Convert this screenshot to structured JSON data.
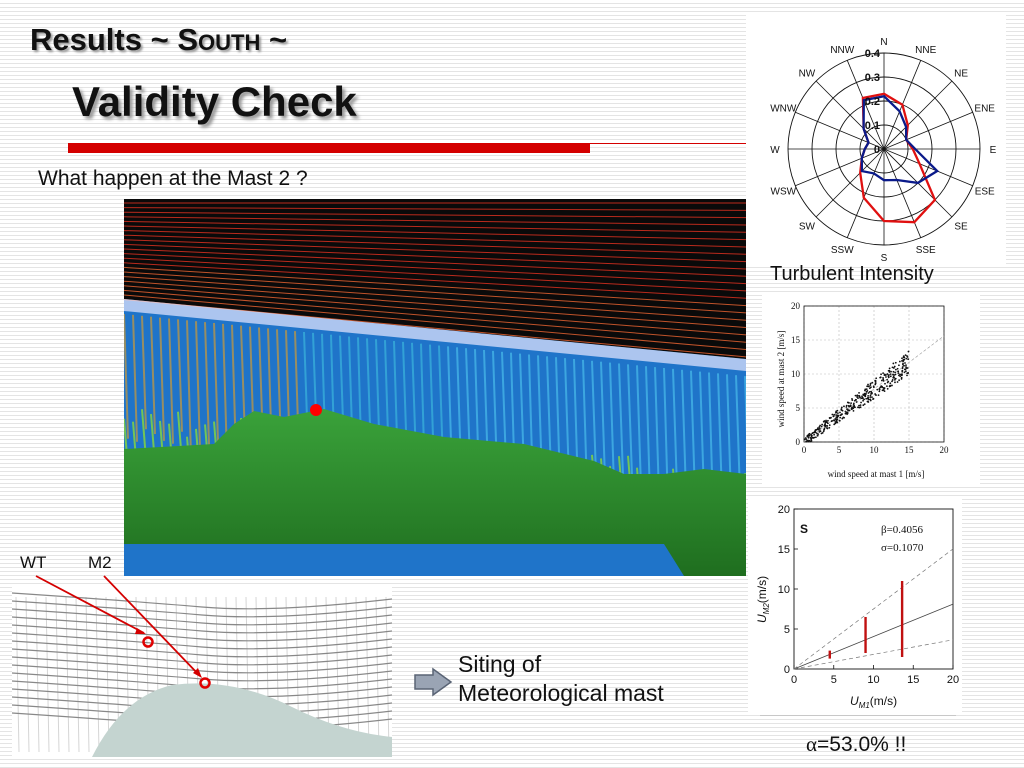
{
  "slide": {
    "title_results": "Results",
    "title_tilde1": "~",
    "title_s": "S",
    "title_outh": "OUTH",
    "title_tilde2": "~",
    "subtitle": "Validity Check",
    "question": "What happen at the Mast 2 ?",
    "label_wt": "WT",
    "label_m2": "M2",
    "siting_line1": "Siting of",
    "siting_line2": "Meteorological mast",
    "turbulent_label": "Turbulent Intensity",
    "alpha_symbol": "α",
    "alpha_text": "=53.0% !!"
  },
  "colors": {
    "accent_red": "#d40000",
    "sky": "#0a0a0a",
    "sea": "#1f74c9",
    "terrain": "#2a8a2a",
    "rose_red": "#e01010",
    "rose_blue": "#0a1a8a"
  },
  "chart_data": [
    {
      "type": "radar",
      "directions": [
        "N",
        "NNE",
        "NE",
        "ENE",
        "E",
        "ESE",
        "SE",
        "SSE",
        "S",
        "SSW",
        "SW",
        "WSW",
        "W",
        "WNW",
        "NW",
        "NNW"
      ],
      "radial_ticks": [
        "0",
        "0.1",
        "0.2",
        "0.3",
        "0.4"
      ],
      "rlim": [
        0,
        0.4
      ],
      "series": [
        {
          "color": "#e01010",
          "values": [
            0.23,
            0.2,
            0.14,
            0.1,
            0.12,
            0.16,
            0.3,
            0.33,
            0.3,
            0.22,
            0.14,
            0.1,
            0.08,
            0.07,
            0.12,
            0.23
          ]
        },
        {
          "color": "#0a1a8a",
          "values": [
            0.22,
            0.17,
            0.13,
            0.1,
            0.13,
            0.24,
            0.2,
            0.14,
            0.13,
            0.11,
            0.13,
            0.1,
            0.08,
            0.07,
            0.12,
            0.22
          ]
        }
      ]
    },
    {
      "type": "scatter",
      "xlabel": "wind speed at mast 1 [m/s]",
      "ylabel": "wind speed at mast 2 [m/s]",
      "xlim": [
        0,
        20
      ],
      "ylim": [
        0,
        20
      ],
      "x_ticks": [
        "0",
        "5",
        "10",
        "15",
        "20"
      ],
      "y_ticks": [
        "0",
        "5",
        "10",
        "15",
        "20"
      ],
      "cloud": {
        "x_start": 0,
        "x_end": 15,
        "slope": 0.78,
        "spread": 1.2
      }
    },
    {
      "type": "scatter",
      "panel_label": "S",
      "beta_text": "β=0.4056",
      "sigma_text": "σ=0.1070",
      "xlabel_u": "U",
      "xlabel_sub": "M1",
      "xlabel_unit": "(m/s)",
      "ylabel_u": "U",
      "ylabel_sub": "M2",
      "ylabel_unit": "(m/s)",
      "xlim": [
        0,
        20
      ],
      "ylim": [
        0,
        20
      ],
      "x_ticks": [
        "0",
        "5",
        "10",
        "15",
        "20"
      ],
      "y_ticks": [
        "0",
        "5",
        "10",
        "15",
        "20"
      ],
      "fit_slope": 0.4056,
      "points": [
        {
          "x": 4.5,
          "ymin": 1.3,
          "ymax": 2.3
        },
        {
          "x": 9.0,
          "ymin": 2.0,
          "ymax": 6.5
        },
        {
          "x": 13.6,
          "ymin": 1.5,
          "ymax": 11.0
        }
      ]
    }
  ]
}
